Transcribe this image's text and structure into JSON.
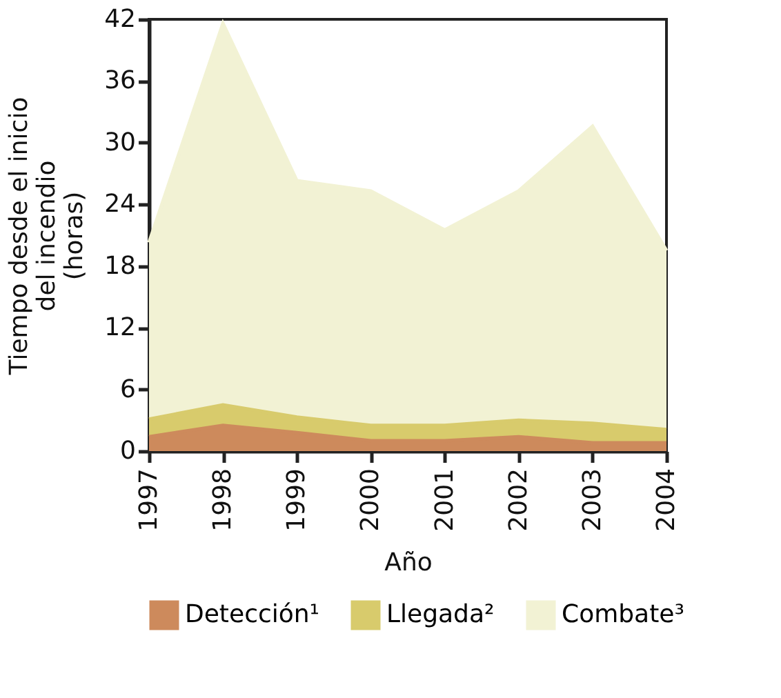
{
  "chart_data": {
    "type": "area",
    "stacked": true,
    "xlabel": "Año",
    "ylabel": "Tiempo desde el inicio\ndel incendio\n(horas)",
    "x": [
      1997,
      1998,
      1999,
      2000,
      2001,
      2002,
      2003,
      2004
    ],
    "series": [
      {
        "name": "Detección¹",
        "color": "#cd8a5c",
        "values": [
          1.4,
          2.5,
          1.8,
          1.0,
          1.0,
          1.4,
          0.8,
          0.8
        ]
      },
      {
        "name": "Llegada²",
        "color": "#d8cb6c",
        "values": [
          1.7,
          2.0,
          1.5,
          1.5,
          1.5,
          1.6,
          1.9,
          1.3
        ]
      },
      {
        "name": "Combate³",
        "color": "#f2f2d4",
        "values": [
          17.2,
          37.1,
          23.0,
          22.8,
          19.0,
          22.3,
          28.9,
          17.4
        ]
      }
    ],
    "xlim": [
      1997,
      2004
    ],
    "xticks": [
      1997,
      1998,
      1999,
      2000,
      2001,
      2002,
      2003,
      2004
    ],
    "ylim": [
      0,
      42
    ],
    "yticks": [
      0,
      6,
      12,
      18,
      24,
      30,
      36,
      42
    ],
    "grid": false,
    "legend": "bottom"
  }
}
